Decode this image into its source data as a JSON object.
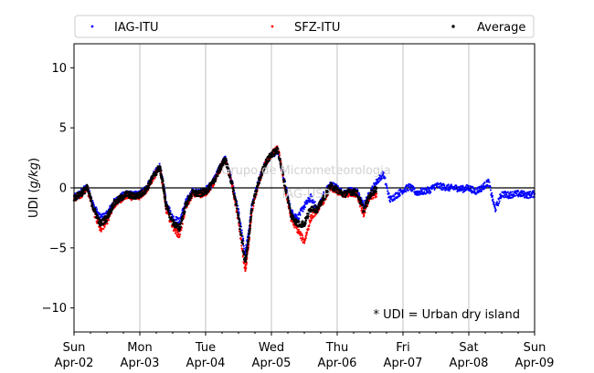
{
  "chart_data": {
    "type": "scatter",
    "title": "",
    "ylabel": "UDI (g/kg)",
    "ylabel_parts": [
      "UDI (",
      "g/kg",
      ")"
    ],
    "xlabel": "",
    "ylim": [
      -12,
      12
    ],
    "yticks": [
      10,
      5,
      0,
      -5,
      -10
    ],
    "ytick_labels": [
      "10",
      "5",
      "0",
      "−5",
      "−10"
    ],
    "xlim": [
      "2023-04-02",
      "2023-04-09"
    ],
    "xticks": [
      {
        "day": "Sun",
        "date": "Apr-02"
      },
      {
        "day": "Mon",
        "date": "Apr-03"
      },
      {
        "day": "Tue",
        "date": "Apr-04"
      },
      {
        "day": "Wed",
        "date": "Apr-05"
      },
      {
        "day": "Thu",
        "date": "Apr-06"
      },
      {
        "day": "Fri",
        "date": "Apr-07"
      },
      {
        "day": "Sat",
        "date": "Apr-08"
      },
      {
        "day": "Sun",
        "date": "Apr-09"
      }
    ],
    "grid": "vertical",
    "zero_line": true,
    "legend_position": "top",
    "annotation": "* UDI = Urban dry island",
    "watermark": [
      "Grupo de Micrometeorologia",
      "IAG-USP"
    ],
    "x_unit": "days since Apr-02 00:00",
    "series": [
      {
        "name": "IAG-ITU",
        "color": "#0000ff",
        "x": [
          0,
          0.1,
          0.2,
          0.3,
          0.4,
          0.5,
          0.6,
          0.7,
          0.8,
          0.9,
          1.0,
          1.1,
          1.2,
          1.3,
          1.35,
          1.4,
          1.5,
          1.6,
          1.7,
          1.8,
          1.9,
          2.0,
          2.1,
          2.2,
          2.25,
          2.3,
          2.4,
          2.5,
          2.6,
          2.65,
          2.7,
          2.8,
          2.9,
          3.0,
          3.1,
          3.2,
          3.3,
          3.4,
          3.5,
          3.6,
          3.7,
          3.8,
          3.9,
          4.0,
          4.1,
          4.2,
          4.3,
          4.4,
          4.5,
          4.6,
          4.7,
          4.8,
          4.9,
          5.0,
          5.1,
          5.2,
          5.3,
          5.4,
          5.5,
          5.6,
          5.7,
          5.8,
          5.9,
          6.0,
          6.1,
          6.2,
          6.3,
          6.4,
          6.5,
          6.6,
          6.7,
          6.8,
          6.9,
          7.0
        ],
        "y": [
          -0.8,
          -0.4,
          0.1,
          -1.5,
          -2.5,
          -2.2,
          -1.2,
          -0.8,
          -0.4,
          -0.6,
          -0.5,
          0.0,
          1.0,
          1.8,
          0.5,
          -1.2,
          -2.5,
          -2.8,
          -1.2,
          -0.3,
          -0.4,
          -0.2,
          0.4,
          1.5,
          2.0,
          2.4,
          0.5,
          -2.0,
          -5.5,
          -4.0,
          -1.5,
          0.5,
          2.0,
          2.8,
          3.0,
          0.5,
          -2.0,
          -2.5,
          -1.5,
          -0.8,
          -1.8,
          -0.5,
          0.3,
          0.0,
          -0.5,
          -0.2,
          -0.3,
          -1.5,
          -0.4,
          0.5,
          1.2,
          -1.0,
          -0.6,
          -0.2,
          0.1,
          -0.4,
          -0.3,
          -0.2,
          0.2,
          0.1,
          0.0,
          0.0,
          -0.1,
          0.0,
          -0.3,
          0.0,
          0.5,
          -1.8,
          -0.5,
          -0.6,
          -0.5,
          -0.5,
          -0.6,
          -0.5
        ]
      },
      {
        "name": "SFZ-ITU",
        "color": "#ff0000",
        "x": [
          0,
          0.1,
          0.2,
          0.3,
          0.4,
          0.5,
          0.6,
          0.7,
          0.8,
          0.9,
          1.0,
          1.1,
          1.2,
          1.3,
          1.35,
          1.4,
          1.5,
          1.6,
          1.7,
          1.8,
          1.9,
          2.0,
          2.1,
          2.2,
          2.25,
          2.3,
          2.4,
          2.5,
          2.6,
          2.65,
          2.7,
          2.8,
          2.9,
          3.0,
          3.1,
          3.2,
          3.3,
          3.4,
          3.5,
          3.6,
          3.7,
          3.8,
          3.9,
          4.0,
          4.1,
          4.2,
          4.3,
          4.4,
          4.5,
          4.6
        ],
        "y": [
          -0.9,
          -0.6,
          -0.1,
          -2.0,
          -3.5,
          -2.8,
          -1.5,
          -1.0,
          -0.6,
          -0.8,
          -0.7,
          -0.2,
          0.8,
          1.7,
          0.3,
          -1.8,
          -3.2,
          -4.0,
          -1.6,
          -0.5,
          -0.6,
          -0.4,
          0.2,
          1.3,
          1.9,
          2.3,
          0.3,
          -2.8,
          -7.0,
          -5.0,
          -2.0,
          0.3,
          1.9,
          2.8,
          3.3,
          0.2,
          -2.6,
          -3.5,
          -4.5,
          -2.5,
          -1.8,
          -1.0,
          0.0,
          -0.3,
          -0.6,
          -0.4,
          -0.5,
          -2.2,
          -0.8,
          -0.5
        ]
      },
      {
        "name": "Average",
        "color": "#000000",
        "x": [
          0,
          0.1,
          0.2,
          0.3,
          0.4,
          0.5,
          0.6,
          0.7,
          0.8,
          0.9,
          1.0,
          1.1,
          1.2,
          1.3,
          1.35,
          1.4,
          1.5,
          1.6,
          1.7,
          1.8,
          1.9,
          2.0,
          2.1,
          2.2,
          2.25,
          2.3,
          2.4,
          2.5,
          2.6,
          2.65,
          2.7,
          2.8,
          2.9,
          3.0,
          3.1,
          3.2,
          3.3,
          3.4,
          3.5,
          3.6,
          3.7,
          3.8,
          3.9,
          4.0,
          4.1,
          4.2,
          4.3,
          4.4,
          4.5,
          4.6
        ],
        "y": [
          -0.85,
          -0.5,
          0.0,
          -1.75,
          -3.0,
          -2.5,
          -1.35,
          -0.9,
          -0.5,
          -0.7,
          -0.6,
          -0.1,
          0.9,
          1.75,
          0.4,
          -1.5,
          -2.85,
          -3.4,
          -1.4,
          -0.4,
          -0.5,
          -0.3,
          0.3,
          1.4,
          1.95,
          2.35,
          0.4,
          -2.4,
          -6.2,
          -4.5,
          -1.75,
          0.4,
          1.95,
          2.8,
          3.15,
          0.35,
          -2.3,
          -3.0,
          -3.0,
          -1.65,
          -1.8,
          -0.75,
          0.15,
          -0.15,
          -0.55,
          -0.3,
          -0.4,
          -1.85,
          -0.6,
          0.0
        ]
      }
    ]
  }
}
